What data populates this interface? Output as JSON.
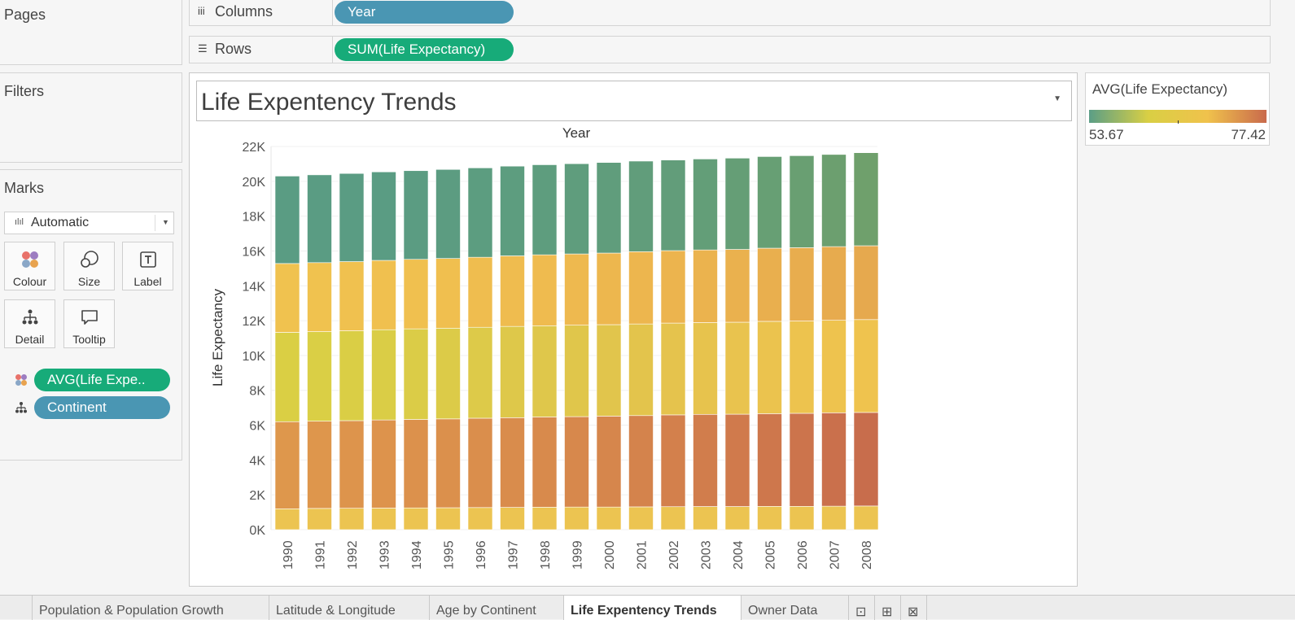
{
  "left_pane": {
    "pages_title": "Pages",
    "filters_title": "Filters",
    "marks_title": "Marks",
    "mark_type": "Automatic",
    "mark_cards": [
      {
        "label": "Colour",
        "icon": "colour-icon"
      },
      {
        "label": "Size",
        "icon": "size-icon"
      },
      {
        "label": "Label",
        "icon": "label-icon"
      },
      {
        "label": "Detail",
        "icon": "detail-icon"
      },
      {
        "label": "Tooltip",
        "icon": "tooltip-icon"
      }
    ],
    "mark_fields": [
      {
        "name": "AVG(Life Expe..",
        "role": "colour",
        "color": "#17ab79"
      },
      {
        "name": "Continent",
        "role": "detail",
        "color": "#4a96b3"
      }
    ]
  },
  "shelves": {
    "columns_label": "Columns",
    "columns_pill": "Year",
    "rows_label": "Rows",
    "rows_pill": "SUM(Life Expectancy)"
  },
  "view": {
    "title": "Life Expentency Trends"
  },
  "legend": {
    "title": "AVG(Life Expectancy)",
    "min_label": "53.67",
    "max_label": "77.42",
    "gradient": [
      "#5b9e86",
      "#d9cf44",
      "#f0c24c",
      "#c96a4c"
    ]
  },
  "chart_data": {
    "type": "bar",
    "stacked": true,
    "title": "Year",
    "xlabel": "Year",
    "ylabel": "Life Expectancy",
    "ylim": [
      0,
      22000
    ],
    "yticks": [
      0,
      2000,
      4000,
      6000,
      8000,
      10000,
      12000,
      14000,
      16000,
      18000,
      20000,
      22000
    ],
    "ytick_labels": [
      "0K",
      "2K",
      "4K",
      "6K",
      "8K",
      "10K",
      "12K",
      "14K",
      "16K",
      "18K",
      "20K",
      "22K"
    ],
    "grid": true,
    "categories": [
      "1990",
      "1991",
      "1992",
      "1993",
      "1994",
      "1995",
      "1996",
      "1997",
      "1998",
      "1999",
      "2000",
      "2001",
      "2002",
      "2003",
      "2004",
      "2005",
      "2006",
      "2007",
      "2008"
    ],
    "series": [
      {
        "values": [
          1200,
          1220,
          1230,
          1240,
          1250,
          1260,
          1270,
          1280,
          1290,
          1300,
          1300,
          1310,
          1320,
          1330,
          1330,
          1340,
          1340,
          1350,
          1360
        ],
        "colors": [
          "#ecc451",
          "#ecc451",
          "#ecc451",
          "#ecc451",
          "#ecc451",
          "#ecc451",
          "#ecc451",
          "#ecc451",
          "#ecc451",
          "#ecc451",
          "#ecc451",
          "#ecc451",
          "#ecc451",
          "#ecc451",
          "#ecc451",
          "#ecc451",
          "#ecc451",
          "#ecc451",
          "#ecc451"
        ]
      },
      {
        "values": [
          5000,
          5010,
          5030,
          5060,
          5080,
          5100,
          5130,
          5150,
          5180,
          5190,
          5220,
          5240,
          5270,
          5290,
          5300,
          5320,
          5340,
          5360,
          5370
        ],
        "colors": [
          "#de974c",
          "#de964c",
          "#dd944c",
          "#dd934c",
          "#dc914c",
          "#db904c",
          "#da8e4c",
          "#d98c4c",
          "#d88a4c",
          "#d7884c",
          "#d6864c",
          "#d4834c",
          "#d3804c",
          "#d17d4c",
          "#d07a4c",
          "#ce774c",
          "#cc744c",
          "#ca704c",
          "#c86d4c"
        ]
      },
      {
        "values": [
          5130,
          5140,
          5160,
          5180,
          5200,
          5210,
          5220,
          5240,
          5240,
          5250,
          5250,
          5260,
          5270,
          5270,
          5280,
          5300,
          5300,
          5310,
          5330
        ],
        "colors": [
          "#dacf44",
          "#dacf45",
          "#dace45",
          "#dacd46",
          "#dbcc47",
          "#dccb48",
          "#ddca49",
          "#dec84a",
          "#dfc74b",
          "#e0c64b",
          "#e1c54c",
          "#e3c44c",
          "#e5c34d",
          "#e7c34d",
          "#e9c34e",
          "#ebc34e",
          "#edc34e",
          "#eec34e",
          "#efc34e"
        ]
      },
      {
        "values": [
          3950,
          3960,
          3970,
          3980,
          3990,
          4000,
          4020,
          4050,
          4070,
          4090,
          4110,
          4150,
          4160,
          4170,
          4180,
          4200,
          4210,
          4230,
          4240
        ],
        "colors": [
          "#f0c24f",
          "#f0c24f",
          "#f0c14f",
          "#f0c04f",
          "#f0c04f",
          "#f0bf4f",
          "#efbd4f",
          "#efbc4f",
          "#efbb4f",
          "#eeb94f",
          "#edb74e",
          "#edb64e",
          "#ecb44e",
          "#ebb34e",
          "#eab14e",
          "#e9af4e",
          "#e8ad4e",
          "#e7ab4e",
          "#e6a94e"
        ]
      },
      {
        "values": [
          5020,
          5040,
          5060,
          5080,
          5090,
          5110,
          5130,
          5150,
          5170,
          5180,
          5200,
          5200,
          5200,
          5220,
          5240,
          5260,
          5280,
          5290,
          5340
        ],
        "colors": [
          "#5a9c83",
          "#5a9c83",
          "#5a9c83",
          "#5a9c83",
          "#5b9c82",
          "#5c9c81",
          "#5c9d80",
          "#5d9d7f",
          "#5e9d7e",
          "#5f9d7d",
          "#609d7c",
          "#619d7b",
          "#629d7a",
          "#639e78",
          "#659e76",
          "#679f74",
          "#699f72",
          "#6c9f6f",
          "#6fa06c"
        ]
      }
    ]
  },
  "tabs": [
    {
      "label": ""
    },
    {
      "label": "Population & Population Growth"
    },
    {
      "label": "Latitude & Longitude"
    },
    {
      "label": "Age by Continent"
    },
    {
      "label": "Life Expentency Trends",
      "active": true
    },
    {
      "label": "Owner Data"
    },
    {
      "label": "⊡"
    },
    {
      "label": "⊞"
    },
    {
      "label": "⊠"
    }
  ]
}
